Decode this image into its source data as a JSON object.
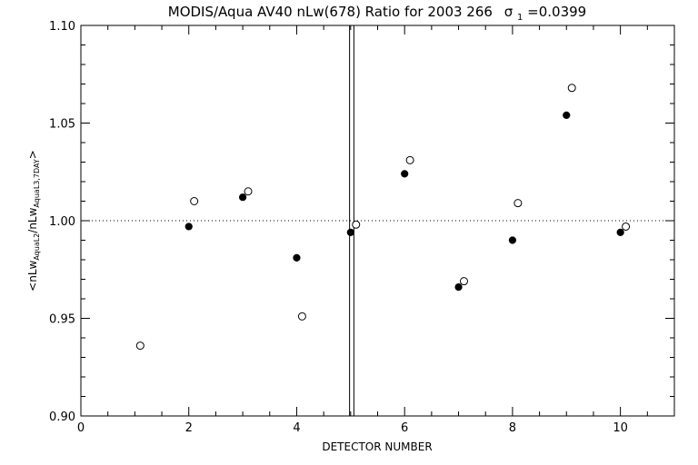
{
  "chart_data": {
    "type": "scatter",
    "title": "MODIS/Aqua AV40 nLw(678) Ratio for 2003 266",
    "title_sigma_symbol": "σ",
    "title_sigma_sub": "1",
    "title_sigma_value": "=0.0399",
    "xlabel": "DETECTOR NUMBER",
    "ylabel_prefix": "<nLw",
    "ylabel_sub1": "AquaL2",
    "ylabel_mid": "/nLw",
    "ylabel_sub2": "AquaL3,7DAY",
    "ylabel_suffix": ">",
    "xlim": [
      0,
      11
    ],
    "ylim": [
      0.9,
      1.1
    ],
    "x_ticks": [
      0,
      2,
      4,
      6,
      8,
      10
    ],
    "x_tick_labels": [
      "0",
      "2",
      "4",
      "6",
      "8",
      "10"
    ],
    "y_ticks": [
      0.9,
      0.95,
      1.0,
      1.05,
      1.1
    ],
    "y_tick_labels": [
      "0.90",
      "0.95",
      "1.00",
      "1.05",
      "1.10"
    ],
    "reference_line_y": 1.0,
    "vertical_lines_x": [
      4.98,
      5.06
    ],
    "series": [
      {
        "marker": "filled-circle",
        "x": [
          2,
          3,
          4,
          5,
          6,
          7,
          8,
          9,
          10
        ],
        "y": [
          0.997,
          1.012,
          0.981,
          0.994,
          1.024,
          0.966,
          0.99,
          1.054,
          0.994
        ]
      },
      {
        "marker": "open-circle",
        "x": [
          1.1,
          2.1,
          3.1,
          4.1,
          5.1,
          6.1,
          7.1,
          8.1,
          9.1,
          10.1
        ],
        "y": [
          0.936,
          1.01,
          1.015,
          0.951,
          0.998,
          1.031,
          0.969,
          1.009,
          1.068,
          0.997
        ]
      }
    ],
    "grid": false,
    "legend": "none"
  }
}
